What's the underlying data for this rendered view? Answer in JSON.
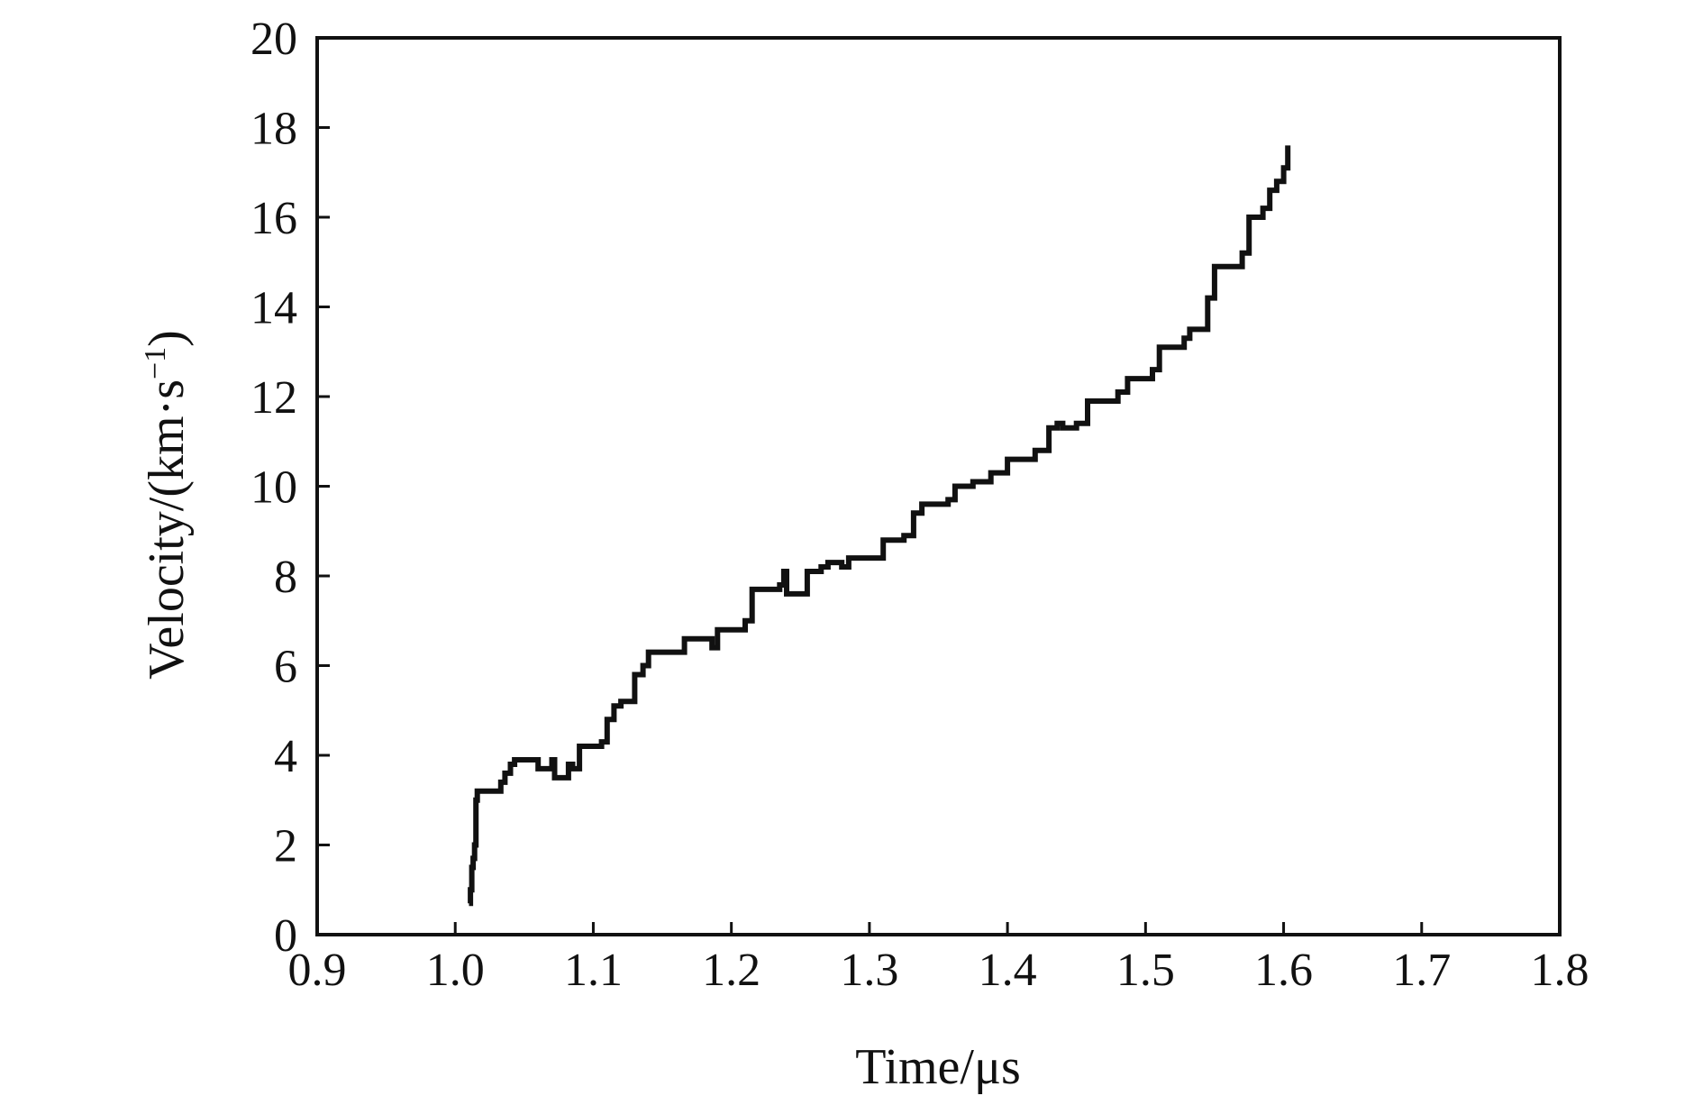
{
  "chart_data": {
    "type": "line",
    "xlabel": "Time/μs",
    "ylabel_main": "Velocity/(km·s",
    "ylabel_sup": "−1",
    "ylabel_close": ")",
    "xlim": [
      0.9,
      1.8
    ],
    "ylim": [
      0,
      20
    ],
    "xticks": [
      0.9,
      1.0,
      1.1,
      1.2,
      1.3,
      1.4,
      1.5,
      1.6,
      1.7,
      1.8
    ],
    "xtick_labels": [
      "0.9",
      "1.0",
      "1.1",
      "1.2",
      "1.3",
      "1.4",
      "1.5",
      "1.6",
      "1.7",
      "1.8"
    ],
    "yticks": [
      0,
      2,
      4,
      6,
      8,
      10,
      12,
      14,
      16,
      18,
      20
    ],
    "ytick_labels": [
      "0",
      "2",
      "4",
      "6",
      "8",
      "10",
      "12",
      "14",
      "16",
      "18",
      "20"
    ],
    "grid": false,
    "series": [
      {
        "color": "#111111",
        "x": [
          1.01,
          1.011,
          1.012,
          1.013,
          1.014,
          1.015,
          1.016,
          1.017,
          1.018,
          1.019,
          1.02,
          1.026,
          1.033,
          1.036,
          1.04,
          1.043,
          1.055,
          1.06,
          1.067,
          1.07,
          1.072,
          1.075,
          1.08,
          1.082,
          1.085,
          1.09,
          1.097,
          1.1,
          1.106,
          1.11,
          1.115,
          1.12,
          1.128,
          1.13,
          1.136,
          1.14,
          1.147,
          1.15,
          1.16,
          1.166,
          1.17,
          1.18,
          1.186,
          1.19,
          1.198,
          1.205,
          1.21,
          1.215,
          1.222,
          1.23,
          1.235,
          1.238,
          1.24,
          1.242,
          1.245,
          1.255,
          1.26,
          1.265,
          1.27,
          1.277,
          1.28,
          1.285,
          1.295,
          1.305,
          1.31,
          1.32,
          1.325,
          1.332,
          1.338,
          1.35,
          1.357,
          1.362,
          1.375,
          1.382,
          1.388,
          1.4,
          1.408,
          1.413,
          1.42,
          1.43,
          1.436,
          1.44,
          1.45,
          1.458,
          1.465,
          1.475,
          1.48,
          1.487,
          1.5,
          1.505,
          1.51,
          1.52,
          1.528,
          1.532,
          1.54,
          1.545,
          1.55,
          1.558,
          1.566,
          1.57,
          1.575,
          1.58,
          1.585,
          1.59,
          1.595,
          1.6,
          1.603
        ],
        "y": [
          0.7,
          1.0,
          1.5,
          1.7,
          2.0,
          3.0,
          3.2,
          3.2,
          3.2,
          3.2,
          3.2,
          3.2,
          3.4,
          3.6,
          3.8,
          3.9,
          3.9,
          3.7,
          3.7,
          3.9,
          3.5,
          3.5,
          3.5,
          3.8,
          3.7,
          4.2,
          4.2,
          4.2,
          4.3,
          4.8,
          5.1,
          5.2,
          5.2,
          5.8,
          6.0,
          6.3,
          6.3,
          6.3,
          6.3,
          6.6,
          6.6,
          6.6,
          6.4,
          6.8,
          6.8,
          6.8,
          7.0,
          7.7,
          7.7,
          7.7,
          7.8,
          8.1,
          7.6,
          7.6,
          7.6,
          8.1,
          8.1,
          8.2,
          8.3,
          8.3,
          8.2,
          8.4,
          8.4,
          8.4,
          8.8,
          8.8,
          8.9,
          9.4,
          9.6,
          9.6,
          9.7,
          10.0,
          10.1,
          10.1,
          10.3,
          10.6,
          10.6,
          10.6,
          10.8,
          11.3,
          11.4,
          11.3,
          11.4,
          11.9,
          11.9,
          11.9,
          12.1,
          12.4,
          12.4,
          12.6,
          13.1,
          13.1,
          13.3,
          13.5,
          13.5,
          14.2,
          14.9,
          14.9,
          14.9,
          15.2,
          16.0,
          16.0,
          16.2,
          16.6,
          16.8,
          17.1,
          17.6
        ]
      }
    ]
  }
}
